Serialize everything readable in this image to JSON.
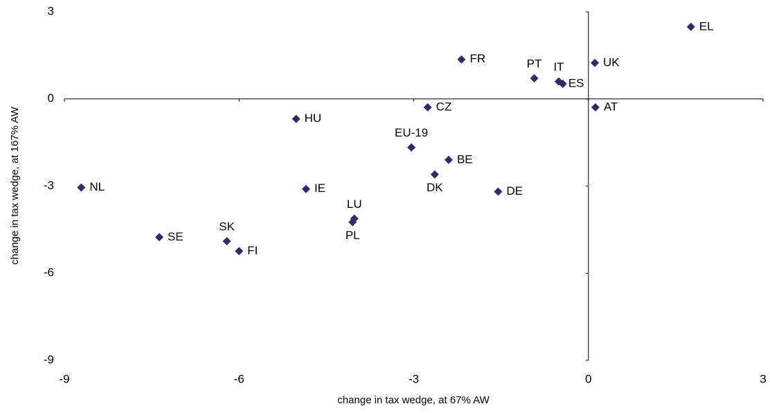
{
  "chart_data": {
    "type": "scatter",
    "x_label": "change in tax wedge, at 67% AW",
    "y_label": "change in tax wedge, at 167% AW",
    "xlim": [
      -9,
      3
    ],
    "xticks": [
      -9,
      -6,
      -3,
      0,
      3
    ],
    "ylim": [
      -9,
      3
    ],
    "yticks": [
      -9,
      -6,
      -3,
      0,
      3
    ],
    "point_labels": [
      "EL",
      "UK",
      "FR",
      "PT",
      "IT",
      "ES",
      "AT",
      "CZ",
      "HU",
      "EU-19",
      "BE",
      "DK",
      "DE",
      "NL",
      "IE",
      "LU",
      "PL",
      "SE",
      "SK",
      "FI"
    ],
    "series": [
      {
        "color": "#2b2b6e",
        "x": [
          1.76,
          0.11,
          -2.18,
          -0.93,
          -0.51,
          -0.44,
          0.12,
          -2.76,
          -5.02,
          -3.04,
          -2.4,
          -2.64,
          -1.55,
          -8.71,
          -4.85,
          -4.02,
          -4.05,
          -7.37,
          -6.21,
          -6.0
        ],
        "values": [
          2.48,
          1.24,
          1.36,
          0.71,
          0.6,
          0.52,
          -0.29,
          -0.29,
          -0.69,
          -1.67,
          -2.1,
          -2.6,
          -3.19,
          -3.05,
          -3.1,
          -4.12,
          -4.24,
          -4.76,
          -4.9,
          -5.24
        ]
      }
    ]
  }
}
